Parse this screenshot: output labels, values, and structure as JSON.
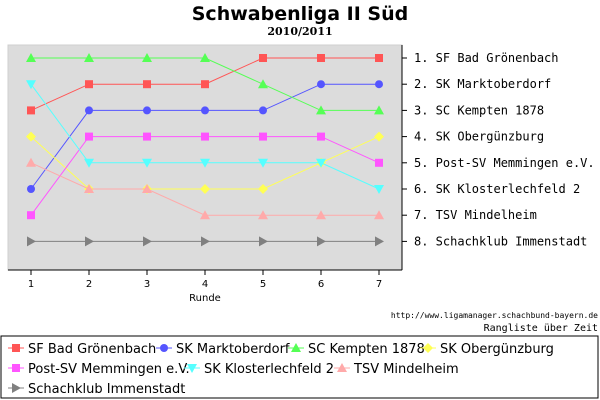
{
  "chart_data": {
    "type": "line",
    "title": "Schwabenliga II Süd",
    "subtitle": "2010/2011",
    "xlabel": "Runde",
    "x": [
      1,
      2,
      3,
      4,
      5,
      6,
      7
    ],
    "ylim": [
      1,
      8
    ],
    "y_inverted": true,
    "grid": false,
    "legend_placement": "bottom",
    "rank_labels": [
      "1. SF Bad Grönenbach",
      "2. SK Marktoberdorf",
      "3. SC Kempten 1878",
      "4. SK Obergünzburg",
      "5. Post-SV Memmingen e.V.",
      "6. SK Klosterlechfeld 2",
      "7. TSV Mindelheim",
      "8. Schachklub Immenstadt"
    ],
    "series": [
      {
        "name": "SF Bad Grönenbach",
        "values": [
          3,
          2,
          2,
          2,
          1,
          1,
          1
        ],
        "color": "#ff5555",
        "marker": "square"
      },
      {
        "name": "SK Marktoberdorf",
        "values": [
          6,
          3,
          3,
          3,
          3,
          2,
          2
        ],
        "color": "#5555ff",
        "marker": "circle"
      },
      {
        "name": "SC Kempten 1878",
        "values": [
          1,
          1,
          1,
          1,
          2,
          3,
          3
        ],
        "color": "#55ff55",
        "marker": "triangle-up"
      },
      {
        "name": "SK Obergünzburg",
        "values": [
          4,
          6,
          6,
          6,
          6,
          5,
          4
        ],
        "color": "#ffff55",
        "marker": "diamond"
      },
      {
        "name": "Post-SV Memmingen e.V.",
        "values": [
          7,
          4,
          4,
          4,
          4,
          4,
          5
        ],
        "color": "#ff55ff",
        "marker": "square"
      },
      {
        "name": "SK Klosterlechfeld 2",
        "values": [
          2,
          5,
          5,
          5,
          5,
          5,
          6
        ],
        "color": "#55ffff",
        "marker": "triangle-down"
      },
      {
        "name": "TSV Mindelheim",
        "values": [
          5,
          6,
          6,
          7,
          7,
          7,
          7
        ],
        "color": "#ffaaaa",
        "marker": "triangle-up"
      },
      {
        "name": "Schachklub Immenstadt",
        "values": [
          8,
          8,
          8,
          8,
          8,
          8,
          8
        ],
        "color": "#808080",
        "marker": "triangle-right"
      }
    ]
  },
  "footer": {
    "url": "http://www.ligamanager.schachbund-bayern.de",
    "caption": "Rangliste über Zeit"
  },
  "colors": {
    "plot_background": "#dcdcdc"
  }
}
